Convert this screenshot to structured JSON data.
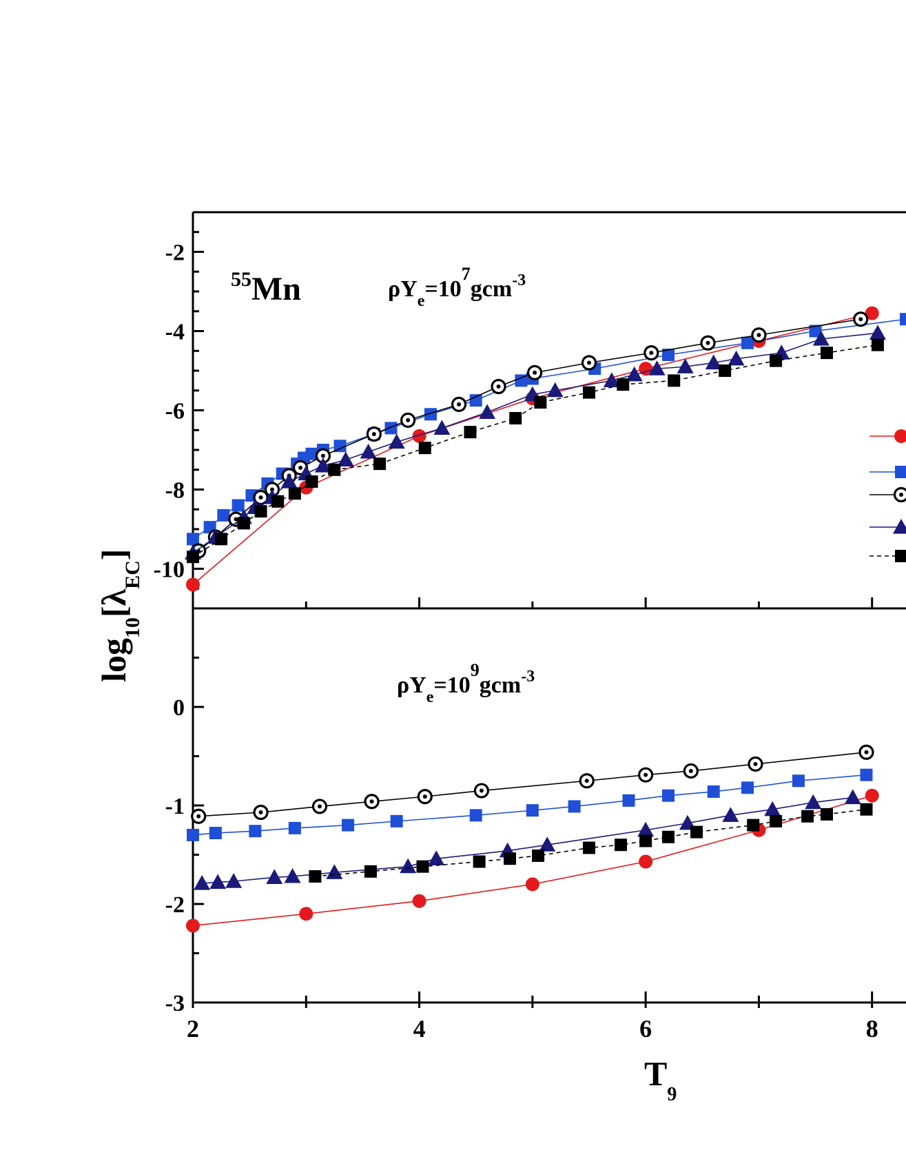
{
  "chart_data": [
    {
      "panel": "top",
      "type": "line",
      "nucleus": {
        "mass": "55",
        "symbol": "Mn"
      },
      "condition": {
        "prefix": "ρY",
        "sub": "e",
        "mid": "=10",
        "sup": "7",
        "suffix": "gcm",
        "unit_sup": "-3"
      },
      "xlim": [
        2,
        8.3
      ],
      "ylim": [
        -11,
        -1
      ],
      "yticks": [
        -2,
        -4,
        -6,
        -8,
        -10
      ],
      "series": [
        {
          "color": "#e41a1c",
          "marker": "ball",
          "dash": false,
          "x": [
            2.0,
            3.0,
            4.0,
            5.0,
            6.0,
            7.0,
            8.0
          ],
          "y": [
            -10.4,
            -7.95,
            -6.65,
            -5.7,
            -4.95,
            -4.25,
            -3.55
          ]
        },
        {
          "color": "#1f4fd6",
          "marker": "square",
          "dash": false,
          "x": [
            2.0,
            2.15,
            2.27,
            2.4,
            2.52,
            2.66,
            2.79,
            2.92,
            2.98,
            3.05,
            3.15,
            3.3,
            3.6,
            3.75,
            4.1,
            4.5,
            4.9,
            5.0,
            5.55,
            6.2,
            6.9,
            7.5,
            8.3
          ],
          "y": [
            -9.25,
            -8.95,
            -8.65,
            -8.4,
            -8.15,
            -7.85,
            -7.6,
            -7.35,
            -7.2,
            -7.1,
            -7.0,
            -6.9,
            -6.6,
            -6.45,
            -6.1,
            -5.75,
            -5.25,
            -5.2,
            -4.95,
            -4.6,
            -4.3,
            -4.0,
            -3.7
          ]
        },
        {
          "color": "#000000",
          "marker": "circle-dot",
          "dash": false,
          "x": [
            2.05,
            2.2,
            2.38,
            2.6,
            2.7,
            2.85,
            2.95,
            3.15,
            3.6,
            3.9,
            4.35,
            4.7,
            5.02,
            5.5,
            6.05,
            6.55,
            7.0,
            7.9
          ],
          "y": [
            -9.55,
            -9.2,
            -8.75,
            -8.2,
            -8.0,
            -7.65,
            -7.45,
            -7.15,
            -6.6,
            -6.25,
            -5.85,
            -5.4,
            -5.05,
            -4.8,
            -4.55,
            -4.3,
            -4.1,
            -3.7
          ]
        },
        {
          "color": "#1a1a7a",
          "marker": "triangle",
          "dash": false,
          "x": [
            2.0,
            2.2,
            2.45,
            2.55,
            2.7,
            2.85,
            3.0,
            3.15,
            3.35,
            3.55,
            3.8,
            4.2,
            4.6,
            5.0,
            5.2,
            5.7,
            5.9,
            6.1,
            6.35,
            6.6,
            6.8,
            7.2,
            7.55,
            8.05
          ],
          "y": [
            -9.6,
            -9.2,
            -8.7,
            -8.45,
            -8.2,
            -7.8,
            -7.6,
            -7.4,
            -7.25,
            -7.05,
            -6.8,
            -6.45,
            -6.05,
            -5.6,
            -5.5,
            -5.25,
            -5.1,
            -4.95,
            -4.9,
            -4.8,
            -4.7,
            -4.55,
            -4.2,
            -4.05
          ]
        },
        {
          "color": "#000000",
          "marker": "square",
          "dash": true,
          "x": [
            2.0,
            2.25,
            2.45,
            2.6,
            2.75,
            2.9,
            3.05,
            3.25,
            3.65,
            4.05,
            4.45,
            4.85,
            5.07,
            5.5,
            5.8,
            6.25,
            6.7,
            7.15,
            7.6,
            8.05
          ],
          "y": [
            -9.7,
            -9.25,
            -8.85,
            -8.55,
            -8.3,
            -8.1,
            -7.8,
            -7.5,
            -7.35,
            -6.95,
            -6.55,
            -6.2,
            -5.8,
            -5.55,
            -5.35,
            -5.25,
            -5.0,
            -4.75,
            -4.55,
            -4.35
          ]
        }
      ],
      "legend_markers": [
        {
          "color": "#e41a1c",
          "marker": "ball",
          "dash": false
        },
        {
          "color": "#1f4fd6",
          "marker": "square",
          "dash": false
        },
        {
          "color": "#000000",
          "marker": "circle-dot",
          "dash": false
        },
        {
          "color": "#1a1a7a",
          "marker": "triangle",
          "dash": false
        },
        {
          "color": "#000000",
          "marker": "square",
          "dash": true
        }
      ]
    },
    {
      "panel": "bottom",
      "type": "line",
      "condition": {
        "prefix": "ρY",
        "sub": "e",
        "mid": "=10",
        "sup": "9",
        "suffix": "gcm",
        "unit_sup": "-3"
      },
      "xlim": [
        2,
        8.3
      ],
      "ylim": [
        -3,
        1
      ],
      "yticks": [
        0,
        -1,
        -2,
        -3
      ],
      "xticks": [
        2,
        4,
        6,
        8
      ],
      "xlabel": {
        "main": "T",
        "sub": "9"
      },
      "ylabel": {
        "pre": "log",
        "sub": "10",
        "open": "[",
        "lambda": "λ",
        "lsub": "EC",
        "close": "]"
      },
      "series": [
        {
          "color": "#e41a1c",
          "marker": "ball",
          "dash": false,
          "x": [
            2.0,
            3.0,
            4.0,
            5.0,
            6.0,
            7.0,
            8.0
          ],
          "y": [
            -2.22,
            -2.1,
            -1.97,
            -1.8,
            -1.57,
            -1.25,
            -0.9
          ]
        },
        {
          "color": "#1f4fd6",
          "marker": "square",
          "dash": false,
          "x": [
            2.0,
            2.2,
            2.55,
            2.9,
            3.37,
            3.8,
            4.5,
            5.0,
            5.37,
            5.85,
            6.2,
            6.6,
            6.9,
            7.35,
            7.95
          ],
          "y": [
            -1.3,
            -1.28,
            -1.26,
            -1.23,
            -1.2,
            -1.16,
            -1.1,
            -1.05,
            -1.01,
            -0.95,
            -0.9,
            -0.86,
            -0.82,
            -0.75,
            -0.69
          ]
        },
        {
          "color": "#000000",
          "marker": "circle-dot",
          "dash": false,
          "x": [
            2.05,
            2.6,
            3.12,
            3.58,
            4.05,
            4.55,
            5.48,
            6.0,
            6.4,
            6.97,
            7.95
          ],
          "y": [
            -1.11,
            -1.07,
            -1.01,
            -0.96,
            -0.91,
            -0.85,
            -0.75,
            -0.69,
            -0.65,
            -0.58,
            -0.46
          ]
        },
        {
          "color": "#1a1a7a",
          "marker": "triangle",
          "dash": false,
          "x": [
            2.08,
            2.22,
            2.36,
            2.72,
            2.88,
            3.25,
            3.9,
            4.15,
            4.78,
            5.13,
            6.0,
            6.37,
            6.75,
            7.12,
            7.48,
            7.83
          ],
          "y": [
            -1.79,
            -1.78,
            -1.77,
            -1.73,
            -1.72,
            -1.68,
            -1.62,
            -1.54,
            -1.46,
            -1.4,
            -1.25,
            -1.18,
            -1.1,
            -1.04,
            -0.97,
            -0.92
          ]
        },
        {
          "color": "#000000",
          "marker": "square",
          "dash": true,
          "x": [
            3.08,
            3.57,
            4.03,
            4.53,
            4.8,
            5.05,
            5.5,
            5.78,
            6.0,
            6.2,
            6.45,
            6.95,
            7.15,
            7.43,
            7.6,
            7.95
          ],
          "y": [
            -1.72,
            -1.67,
            -1.62,
            -1.57,
            -1.54,
            -1.51,
            -1.43,
            -1.4,
            -1.36,
            -1.32,
            -1.27,
            -1.2,
            -1.16,
            -1.11,
            -1.09,
            -1.04
          ]
        }
      ]
    }
  ]
}
